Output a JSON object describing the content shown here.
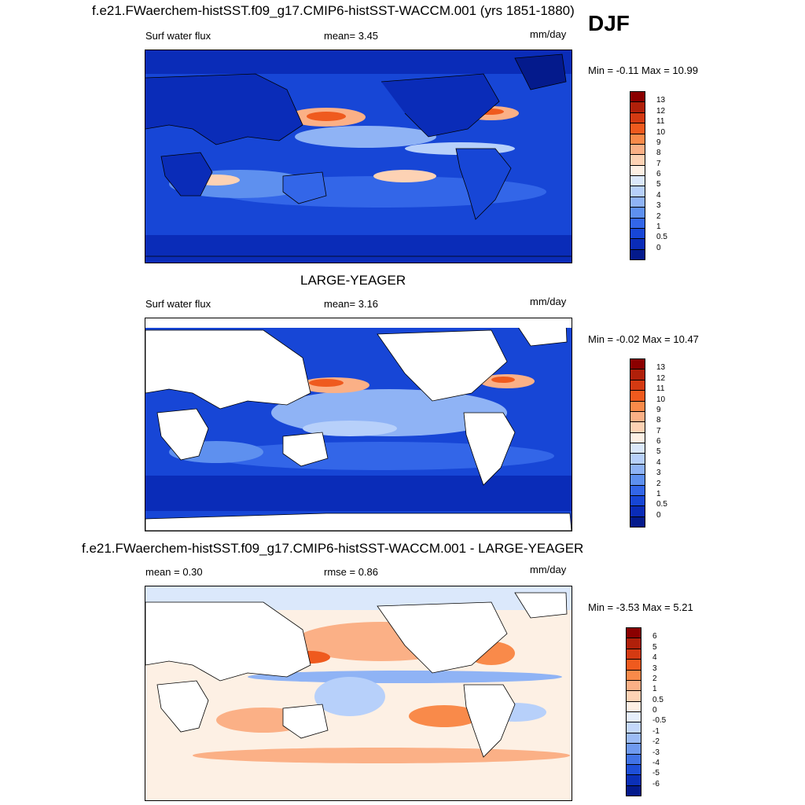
{
  "season": "DJF",
  "panels": [
    {
      "title": "f.e21.FWaerchem-histSST.f09_g17.CMIP6-histSST-WACCM.001 (yrs 1851-1880)",
      "left_label": "Surf water flux",
      "center_label": "mean=   3.45",
      "units": "mm/day",
      "minmax": "Min =  -0.11 Max =  10.99",
      "colorbar": {
        "levels": [
          "13",
          "12",
          "11",
          "10",
          "9",
          "8",
          "7",
          "6",
          "5",
          "4",
          "3",
          "2",
          "1",
          "0.5",
          "0"
        ],
        "colors": [
          "#8b0000",
          "#b0200a",
          "#d43a12",
          "#ef5a1e",
          "#f98a4a",
          "#fbb086",
          "#fdd2b4",
          "#fdf0e4",
          "#dbe8fb",
          "#b7d0fa",
          "#8fb3f5",
          "#5e90ef",
          "#3366e8",
          "#1746d6",
          "#0a2cb8",
          "#041a8c"
        ]
      }
    },
    {
      "title": "LARGE-YEAGER",
      "left_label": "Surf water flux",
      "center_label": "mean=   3.16",
      "units": "mm/day",
      "minmax": "Min =  -0.02 Max =  10.47",
      "colorbar": {
        "levels": [
          "13",
          "12",
          "11",
          "10",
          "9",
          "8",
          "7",
          "6",
          "5",
          "4",
          "3",
          "2",
          "1",
          "0.5",
          "0"
        ],
        "colors": [
          "#8b0000",
          "#b0200a",
          "#d43a12",
          "#ef5a1e",
          "#f98a4a",
          "#fbb086",
          "#fdd2b4",
          "#fdf0e4",
          "#dbe8fb",
          "#b7d0fa",
          "#8fb3f5",
          "#5e90ef",
          "#3366e8",
          "#1746d6",
          "#0a2cb8",
          "#041a8c"
        ]
      }
    },
    {
      "title": "f.e21.FWaerchem-histSST.f09_g17.CMIP6-histSST-WACCM.001 - LARGE-YEAGER",
      "left_label": "mean =   0.30",
      "center_label": "rmse =   0.86",
      "units": "mm/day",
      "minmax": "Min =  -3.53 Max =   5.21",
      "colorbar": {
        "levels": [
          "6",
          "5",
          "4",
          "3",
          "2",
          "1",
          "0.5",
          "0",
          "-0.5",
          "-1",
          "-2",
          "-3",
          "-4",
          "-5",
          "-6"
        ],
        "colors": [
          "#8b0000",
          "#b0200a",
          "#d43a12",
          "#ef5a1e",
          "#f98a4a",
          "#fbb086",
          "#fdd2b4",
          "#fdf0e4",
          "#e6effc",
          "#c4d8fa",
          "#9cbcf5",
          "#6f9aef",
          "#4173e6",
          "#1e4fd8",
          "#0b30b8",
          "#041a8c"
        ]
      }
    }
  ]
}
